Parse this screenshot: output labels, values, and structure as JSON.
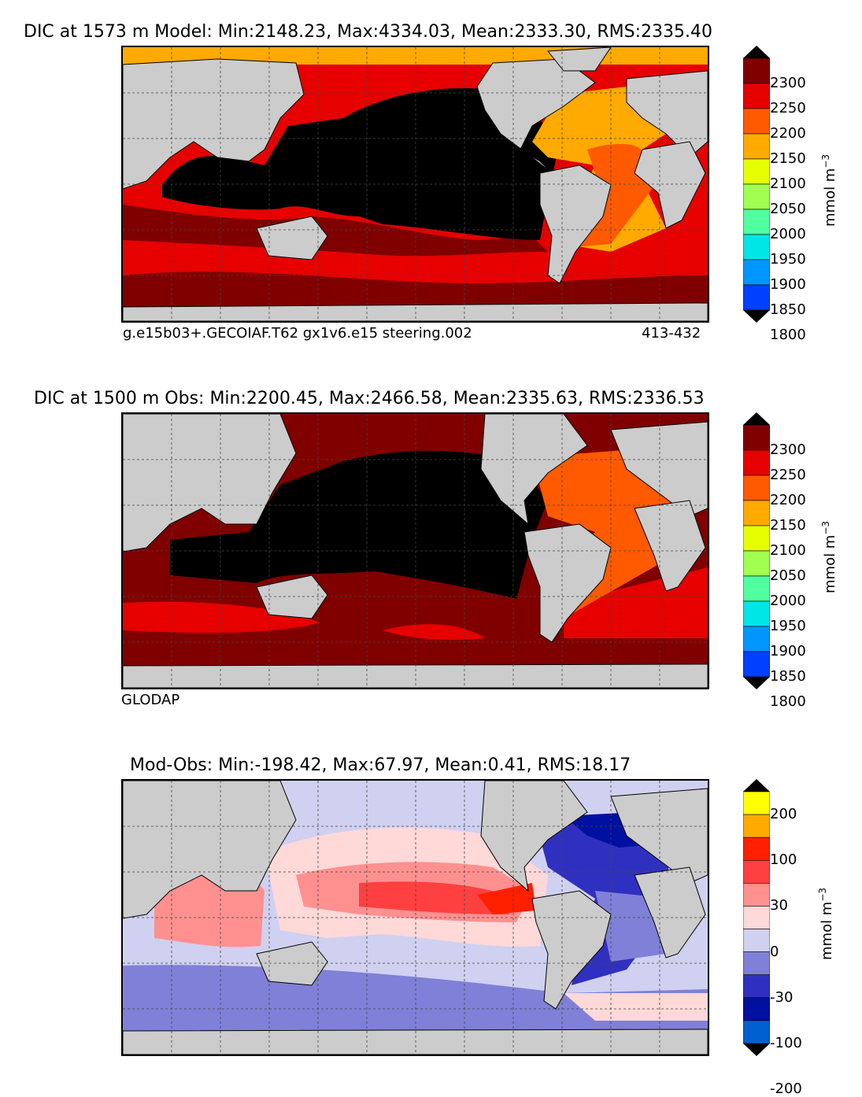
{
  "panels": [
    {
      "title": "DIC at 1573 m Model: Min:2148.23, Max:4334.03, Mean:2333.30, RMS:2335.40",
      "footer_left": "g.e15b03+.GECOIAF.T62 gx1v6.e15 steering.002",
      "footer_right": "413-432",
      "colorbar": {
        "unit": "mmol m",
        "unit_exp": "−3",
        "ticks": [
          "2300",
          "2250",
          "2200",
          "2150",
          "2100",
          "2050",
          "2000",
          "1950",
          "1900",
          "1850",
          "1800"
        ],
        "colors": [
          "#800000",
          "#e60000",
          "#ff5a00",
          "#ffaa00",
          "#e6ff00",
          "#a0ff50",
          "#50ffa0",
          "#00e6e6",
          "#0096ff",
          "#0040ff",
          "#0000e6",
          "#000080"
        ]
      },
      "field": "model"
    },
    {
      "title": "DIC at 1500 m Obs: Min:2200.45, Max:2466.58, Mean:2335.63, RMS:2336.53",
      "footer_left": "GLODAP",
      "footer_right": "",
      "colorbar": {
        "unit": "mmol m",
        "unit_exp": "−3",
        "ticks": [
          "2300",
          "2250",
          "2200",
          "2150",
          "2100",
          "2050",
          "2000",
          "1950",
          "1900",
          "1850",
          "1800"
        ],
        "colors": [
          "#800000",
          "#e60000",
          "#ff5a00",
          "#ffaa00",
          "#e6ff00",
          "#a0ff50",
          "#50ffa0",
          "#00e6e6",
          "#0096ff",
          "#0040ff",
          "#0000e6",
          "#000080"
        ]
      },
      "field": "obs"
    },
    {
      "title": "Mod-Obs: Min:-198.42, Max:67.97, Mean:0.41, RMS:18.17",
      "footer_left": "",
      "footer_right": "",
      "colorbar": {
        "unit": "mmol m",
        "unit_exp": "−3",
        "ticks": [
          "200",
          "100",
          "30",
          "0",
          "-30",
          "-100",
          "-200"
        ],
        "colors": [
          "#ffff00",
          "#ffaa00",
          "#ff2000",
          "#ff4040",
          "#ff9090",
          "#ffd8d8",
          "#d0d0f0",
          "#8080d8",
          "#3030c0",
          "#0010a0",
          "#0060d0",
          "#00b0e0",
          "#00ffff"
        ]
      },
      "field": "diff"
    }
  ],
  "colors": {
    "land": "#cccccc",
    "nodata": "#ffffff",
    "pacific_model": "#000000",
    "arctic_model": "#ffaa00"
  }
}
